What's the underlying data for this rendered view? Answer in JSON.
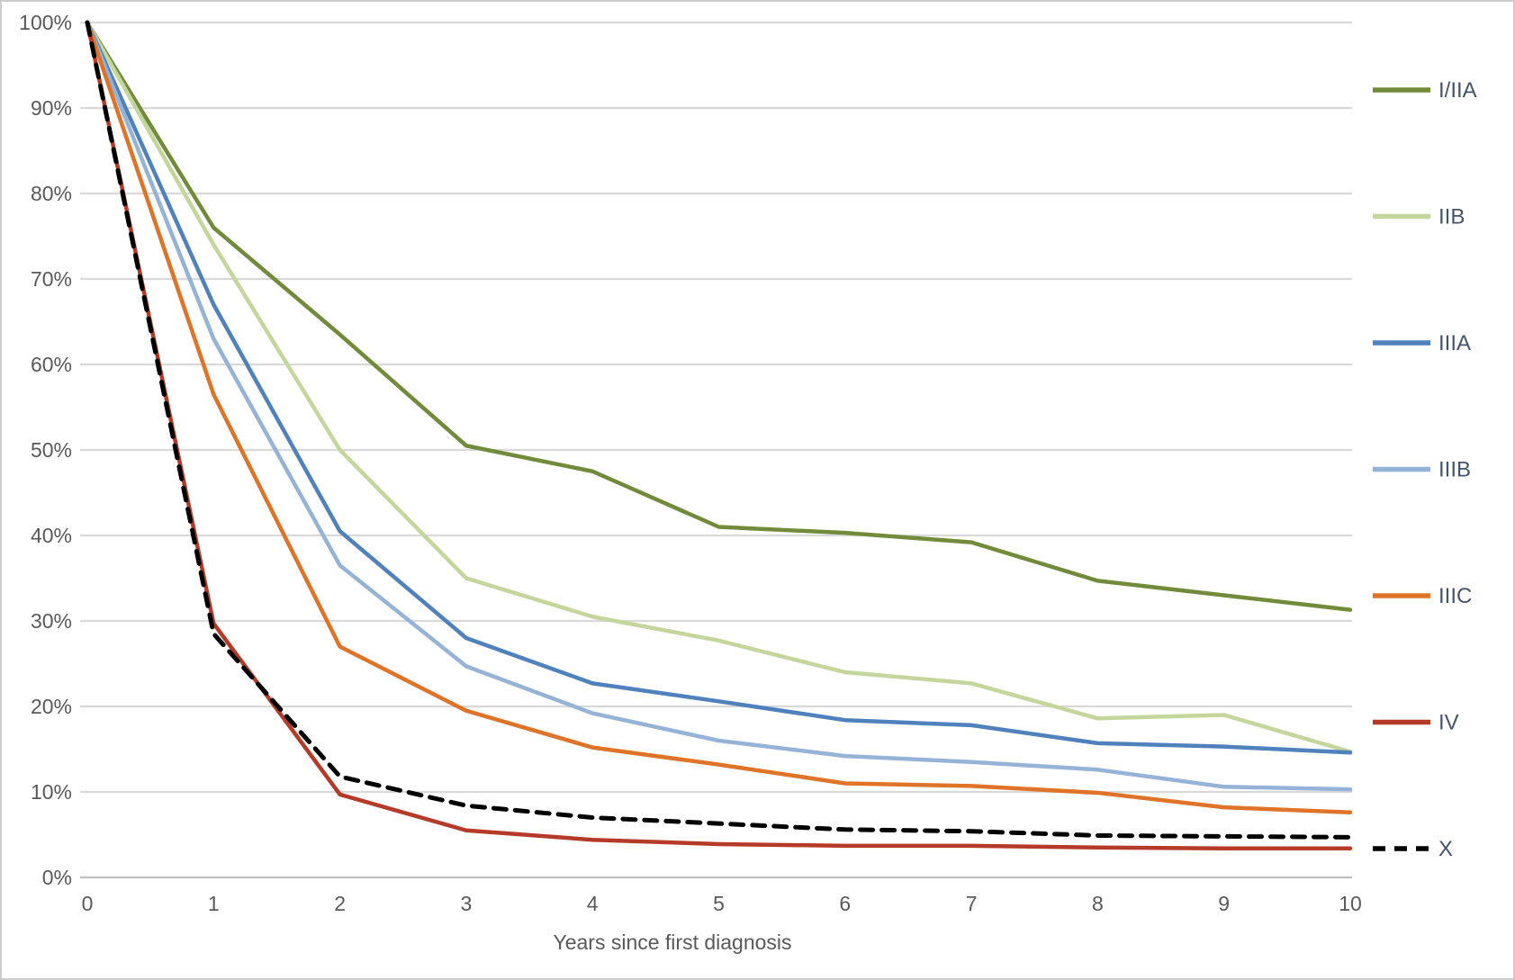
{
  "chart_data": {
    "type": "line",
    "title": "",
    "xlabel": "Years since first diagnosis",
    "ylabel": "",
    "xlim": [
      0,
      10
    ],
    "ylim": [
      0,
      100
    ],
    "grid": "horizontal-only",
    "legend_position": "right",
    "x": [
      0,
      1,
      2,
      3,
      4,
      5,
      6,
      7,
      8,
      9,
      10
    ],
    "x_tick_labels": [
      "0",
      "1",
      "2",
      "3",
      "4",
      "5",
      "6",
      "7",
      "8",
      "9",
      "10"
    ],
    "y_tick_labels": [
      "0%",
      "10%",
      "20%",
      "30%",
      "40%",
      "50%",
      "60%",
      "70%",
      "80%",
      "90%",
      "100%"
    ],
    "series": [
      {
        "name": "I/IIA",
        "color": "#728b3b",
        "style": "solid",
        "values": [
          100,
          76,
          63.5,
          50.5,
          47.5,
          41,
          40.3,
          39.2,
          34.7,
          33,
          31.3
        ]
      },
      {
        "name": "IIB",
        "color": "#c4d69b",
        "style": "solid",
        "values": [
          100,
          74,
          50,
          35,
          30.5,
          27.7,
          24,
          22.7,
          18.6,
          19,
          14.7
        ]
      },
      {
        "name": "IIIA",
        "color": "#4f81bd",
        "style": "solid",
        "values": [
          100,
          67,
          40.5,
          28,
          22.7,
          20.6,
          18.4,
          17.8,
          15.7,
          15.3,
          14.6
        ]
      },
      {
        "name": "IIIB",
        "color": "#95b3d7",
        "style": "solid",
        "values": [
          100,
          63,
          36.5,
          24.7,
          19.2,
          16,
          14.2,
          13.5,
          12.6,
          10.6,
          10.3
        ]
      },
      {
        "name": "IIIC",
        "color": "#df7327",
        "style": "solid",
        "values": [
          100,
          56.5,
          27,
          19.5,
          15.2,
          13.2,
          11,
          10.7,
          9.9,
          8.2,
          7.6
        ]
      },
      {
        "name": "IV",
        "color": "#b63a28",
        "style": "solid",
        "values": [
          100,
          29.7,
          9.7,
          5.5,
          4.4,
          3.9,
          3.7,
          3.7,
          3.5,
          3.4,
          3.4
        ]
      },
      {
        "name": "X",
        "color": "#000000",
        "style": "dashed",
        "values": [
          100,
          28.5,
          11.8,
          8.4,
          7,
          6.3,
          5.6,
          5.4,
          4.9,
          4.8,
          4.7
        ]
      }
    ],
    "colors": {
      "gridline": "#d9d9d9",
      "axis_line": "#bfbfbf",
      "tick_label": "#595959",
      "legend_label": "#44546a",
      "frame_border": "#cccccc",
      "background": "#ffffff"
    }
  }
}
